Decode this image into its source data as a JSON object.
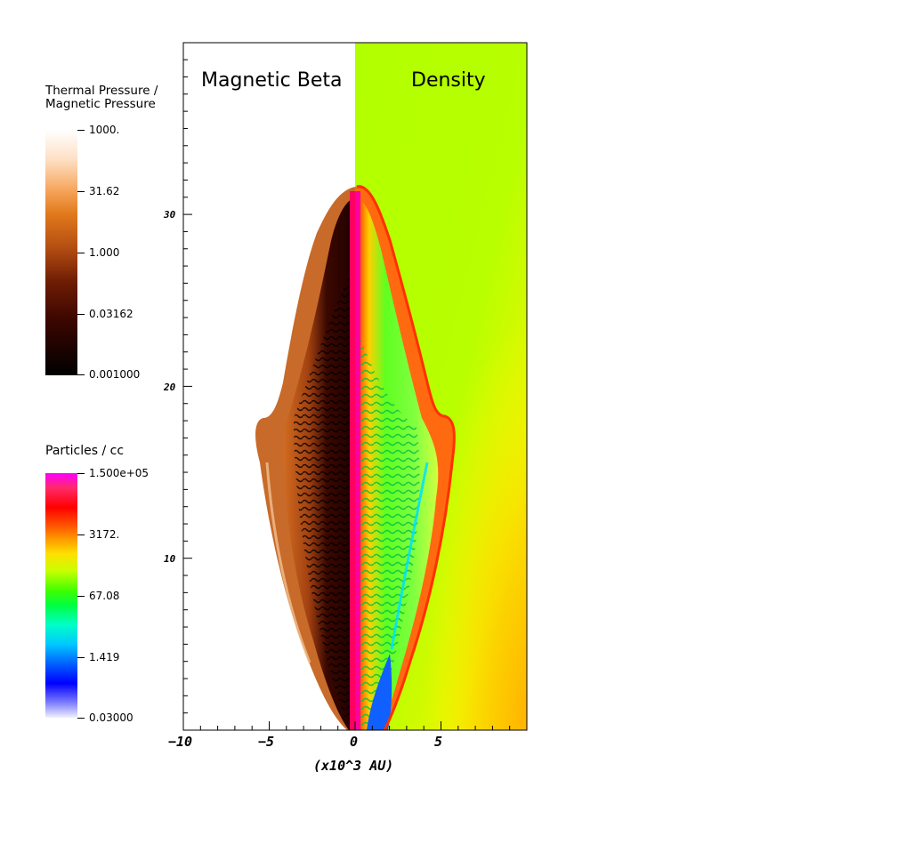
{
  "colorbars": {
    "beta": {
      "title_line1": "Thermal Pressure /",
      "title_line2": "Magnetic Pressure",
      "labels": [
        "1000.",
        "31.62",
        "1.000",
        "0.03162",
        "0.001000"
      ]
    },
    "density": {
      "title": "Particles / cc",
      "labels": [
        "1.500e+05",
        "3172.",
        "67.08",
        "1.419",
        "0.03000"
      ]
    }
  },
  "plot": {
    "left_title": "Magnetic Beta",
    "right_title": "Density",
    "x_ticks": [
      "−10",
      "−5",
      "0",
      "5"
    ],
    "y_ticks": [
      "30",
      "20",
      "10"
    ],
    "x_axis_label": "(x10^3 AU)"
  }
}
